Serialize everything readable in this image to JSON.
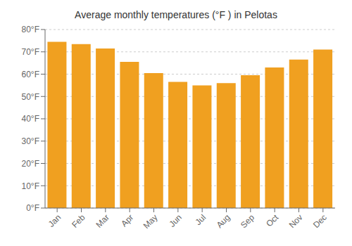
{
  "chart_data": {
    "type": "bar",
    "title": "Average monthly temperatures (°F ) in Pelotas",
    "categories": [
      "Jan",
      "Feb",
      "Mar",
      "Apr",
      "May",
      "Jun",
      "Jul",
      "Aug",
      "Sep",
      "Oct",
      "Nov",
      "Dec"
    ],
    "values": [
      74.5,
      73.5,
      71.5,
      65.5,
      60.5,
      56.5,
      55.0,
      56.0,
      59.5,
      63.0,
      66.5,
      71.0
    ],
    "color": "#F0A020",
    "ylim": [
      0,
      80
    ],
    "yticks": [
      {
        "value": 0,
        "label": "0°F"
      },
      {
        "value": 10,
        "label": "10°F"
      },
      {
        "value": 20,
        "label": "20°F"
      },
      {
        "value": 30,
        "label": "30°F"
      },
      {
        "value": 40,
        "label": "40°F"
      },
      {
        "value": 50,
        "label": "50°F"
      },
      {
        "value": 60,
        "label": "60°F"
      },
      {
        "value": 70,
        "label": "70°F"
      },
      {
        "value": 80,
        "label": "80°F"
      }
    ],
    "grid": true
  }
}
